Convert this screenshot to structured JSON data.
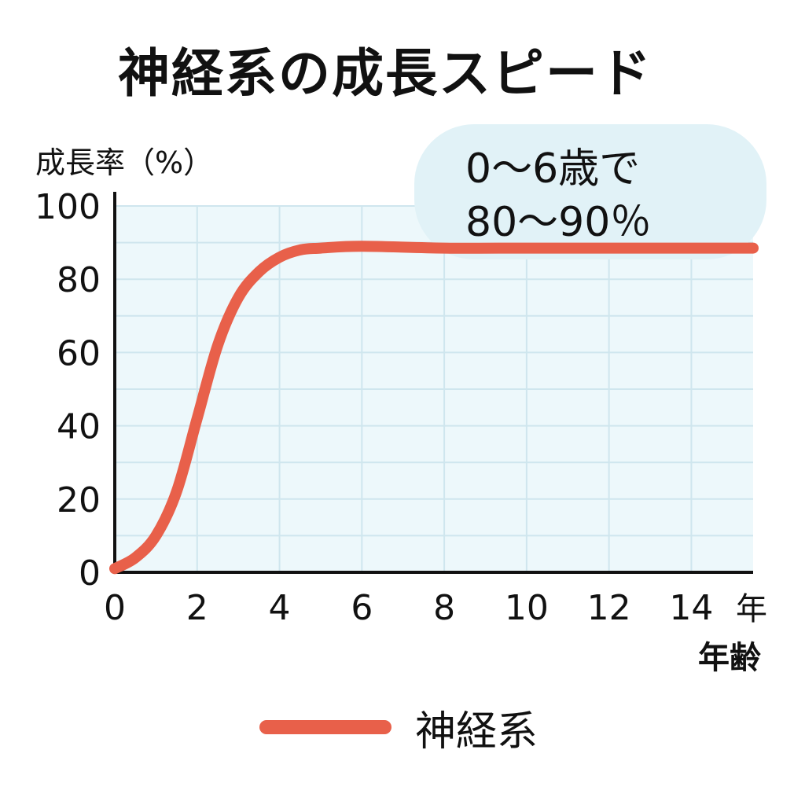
{
  "title": "神経系の成長スピード",
  "callout": {
    "line1": "0〜6歳で",
    "line2": "80〜90％"
  },
  "legend": {
    "label": "神経系"
  },
  "colors": {
    "line": "#E8604A",
    "plot_bg": "#EDF8FB",
    "grid": "#CFE6EE",
    "callout_bg": "#E1F2F7",
    "axis": "#111111"
  },
  "chart_data": {
    "type": "line",
    "title": "神経系の成長スピード",
    "ylabel": "成長率（%）",
    "xlabel": "年齢",
    "x_unit_label": "年",
    "xlim": [
      0,
      15.5
    ],
    "ylim": [
      0,
      100
    ],
    "x_ticks": [
      0,
      2,
      4,
      6,
      8,
      10,
      12,
      14
    ],
    "y_ticks": [
      0,
      20,
      40,
      60,
      80,
      100
    ],
    "grid": true,
    "series": [
      {
        "name": "神経系",
        "color": "#E8604A",
        "x": [
          0,
          0.5,
          1,
          1.5,
          2,
          2.5,
          3,
          3.5,
          4,
          4.5,
          5,
          6,
          8,
          10,
          12,
          14,
          15.5
        ],
        "y": [
          1,
          4,
          10,
          22,
          42,
          62,
          75,
          82,
          86,
          88,
          88.5,
          89,
          88.5,
          88.5,
          88.5,
          88.5,
          88.5
        ]
      }
    ]
  }
}
